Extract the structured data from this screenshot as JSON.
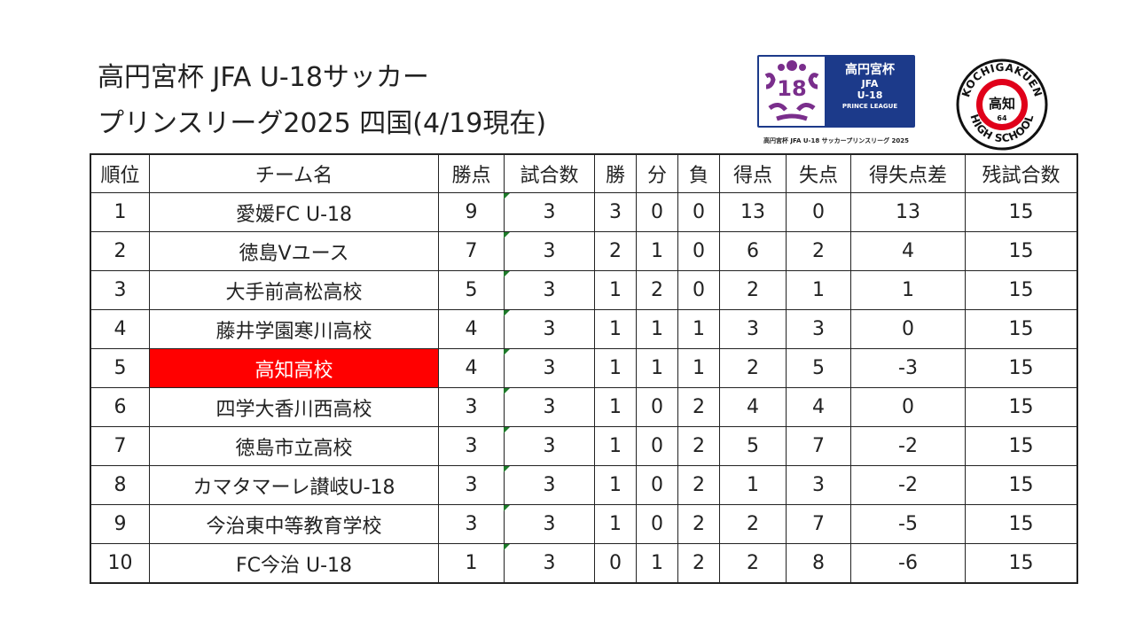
{
  "title": {
    "line1": "高円宮杯 JFA U-18サッカー",
    "line2": "プリンスリーグ2025 四国(4/19現在)"
  },
  "league_logo": {
    "emblem_text": "18",
    "name_line1": "高円宮杯",
    "name_line2": "JFA",
    "name_line3": "U-18",
    "name_line4": "PRINCE LEAGUE",
    "caption": "高円宮杯 JFA U-18 サッカープリンスリーグ 2025",
    "color": "#1c3a8a",
    "emblem_color": "#7a2e8c"
  },
  "school_emblem": {
    "ring_text_top": "KOCHIGAKUEN",
    "ring_text_bottom": "HIGH SCHOOL",
    "center_text": "高知",
    "number": "64",
    "accent_color": "#e0001a"
  },
  "table": {
    "headers": [
      "順位",
      "チーム名",
      "勝点",
      "試合数",
      "勝",
      "分",
      "負",
      "得点",
      "失点",
      "得失点差",
      "残試合数"
    ],
    "highlight_color": "#ff0000",
    "rows": [
      {
        "rank": "1",
        "team": "愛媛FC U-18",
        "points": "9",
        "played": "3",
        "won": "3",
        "drawn": "0",
        "lost": "0",
        "gf": "13",
        "ga": "0",
        "gd": "13",
        "remaining": "15",
        "highlight": false
      },
      {
        "rank": "2",
        "team": "徳島Vユース",
        "points": "7",
        "played": "3",
        "won": "2",
        "drawn": "1",
        "lost": "0",
        "gf": "6",
        "ga": "2",
        "gd": "4",
        "remaining": "15",
        "highlight": false
      },
      {
        "rank": "3",
        "team": "大手前高松高校",
        "points": "5",
        "played": "3",
        "won": "1",
        "drawn": "2",
        "lost": "0",
        "gf": "2",
        "ga": "1",
        "gd": "1",
        "remaining": "15",
        "highlight": false
      },
      {
        "rank": "4",
        "team": "藤井学園寒川高校",
        "points": "4",
        "played": "3",
        "won": "1",
        "drawn": "1",
        "lost": "1",
        "gf": "3",
        "ga": "3",
        "gd": "0",
        "remaining": "15",
        "highlight": false
      },
      {
        "rank": "5",
        "team": "高知高校",
        "points": "4",
        "played": "3",
        "won": "1",
        "drawn": "1",
        "lost": "1",
        "gf": "2",
        "ga": "5",
        "gd": "-3",
        "remaining": "15",
        "highlight": true
      },
      {
        "rank": "6",
        "team": "四学大香川西高校",
        "points": "3",
        "played": "3",
        "won": "1",
        "drawn": "0",
        "lost": "2",
        "gf": "4",
        "ga": "4",
        "gd": "0",
        "remaining": "15",
        "highlight": false
      },
      {
        "rank": "7",
        "team": "徳島市立高校",
        "points": "3",
        "played": "3",
        "won": "1",
        "drawn": "0",
        "lost": "2",
        "gf": "5",
        "ga": "7",
        "gd": "-2",
        "remaining": "15",
        "highlight": false
      },
      {
        "rank": "8",
        "team": "カマタマーレ讃岐U-18",
        "points": "3",
        "played": "3",
        "won": "1",
        "drawn": "0",
        "lost": "2",
        "gf": "1",
        "ga": "3",
        "gd": "-2",
        "remaining": "15",
        "highlight": false
      },
      {
        "rank": "9",
        "team": "今治東中等教育学校",
        "points": "3",
        "played": "3",
        "won": "1",
        "drawn": "0",
        "lost": "2",
        "gf": "2",
        "ga": "7",
        "gd": "-5",
        "remaining": "15",
        "highlight": false
      },
      {
        "rank": "10",
        "team": "FC今治 U-18",
        "points": "1",
        "played": "3",
        "won": "0",
        "drawn": "1",
        "lost": "2",
        "gf": "2",
        "ga": "8",
        "gd": "-6",
        "remaining": "15",
        "highlight": false
      }
    ]
  }
}
